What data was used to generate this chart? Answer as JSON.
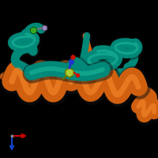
{
  "background_color": "#000000",
  "fig_size": [
    2.0,
    2.0
  ],
  "dpi": 100,
  "orange": "#D06010",
  "orange_dark": "#7A3800",
  "orange_light": "#FF9030",
  "teal": "#008878",
  "teal_dark": "#004840",
  "teal_light": "#20C0A0",
  "ligand_yg": "#AACC33",
  "ligand_blue": "#2233CC",
  "ligand_red": "#CC1100",
  "ligand_dark": "#667700",
  "atom_green": "#33AA22",
  "atom_purple": "#9988BB",
  "axis_red": "#CC0000",
  "axis_blue": "#1144CC",
  "axis_green": "#22AA22"
}
